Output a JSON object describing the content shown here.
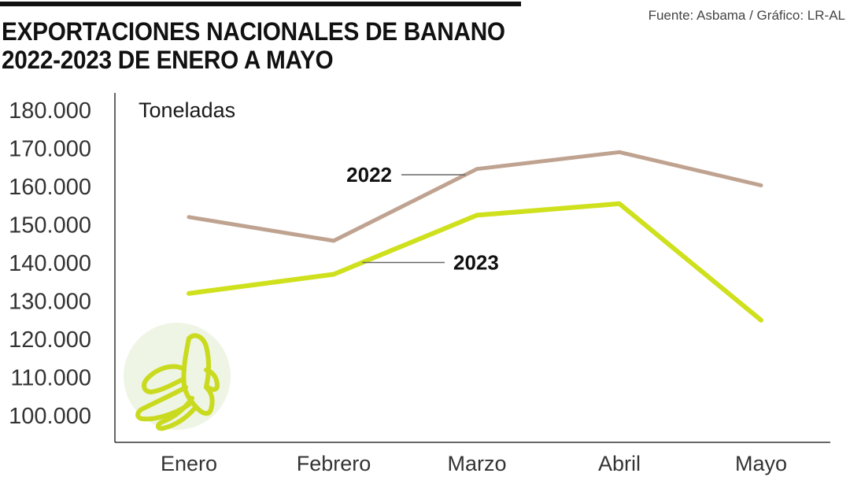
{
  "header": {
    "title_line1": "EXPORTACIONES NACIONALES DE BANANO",
    "title_line2": "2022-2023 DE ENERO A MAYO",
    "source": "Fuente: Asbama / Gráfico: LR-AL"
  },
  "icons": {
    "illustration": "banana-icon"
  },
  "colors": {
    "series_2022": "#bfa390",
    "series_2023": "#cfe01c",
    "banana_circle": "#eef5e4"
  },
  "chart_data": {
    "type": "line",
    "title": "EXPORTACIONES NACIONALES DE BANANO 2022-2023 DE ENERO A MAYO",
    "ylabel": "Toneladas",
    "xlabel": "",
    "categories": [
      "Enero",
      "Febrero",
      "Marzo",
      "Abril",
      "Mayo"
    ],
    "ylim": [
      100000,
      180000
    ],
    "yticks": [
      100000,
      110000,
      120000,
      130000,
      140000,
      150000,
      160000,
      170000,
      180000
    ],
    "ytick_labels": [
      "100.000",
      "110.000",
      "120.000",
      "130.000",
      "140.000",
      "150.000",
      "160.000",
      "170.000",
      "180.000"
    ],
    "grid": false,
    "legend": "inline labels",
    "series": [
      {
        "name": "2022",
        "values": [
          152000,
          145800,
          164600,
          169000,
          160300
        ]
      },
      {
        "name": "2023",
        "values": [
          132000,
          137000,
          152500,
          155500,
          125000
        ]
      }
    ]
  }
}
